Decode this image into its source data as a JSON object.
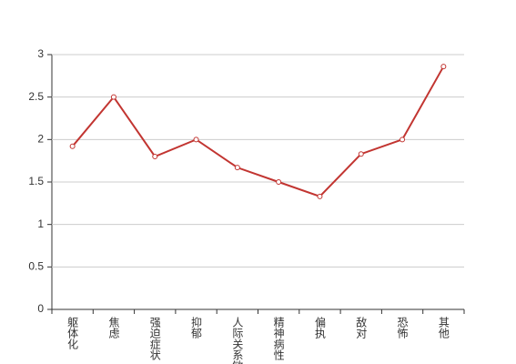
{
  "chart_data": {
    "type": "line",
    "categories": [
      "躯体化",
      "焦虑",
      "强迫症状",
      "抑郁",
      "人际关系敏感",
      "精神病性",
      "偏执",
      "敌对",
      "恐怖",
      "其他"
    ],
    "values": [
      1.92,
      2.5,
      1.8,
      2.0,
      1.67,
      1.5,
      1.33,
      1.83,
      2.0,
      2.86
    ],
    "color": "#c23531",
    "ylim": [
      0,
      3
    ],
    "yticks": [
      0,
      0.5,
      1,
      1.5,
      2,
      2.5,
      3
    ],
    "grid": true
  }
}
